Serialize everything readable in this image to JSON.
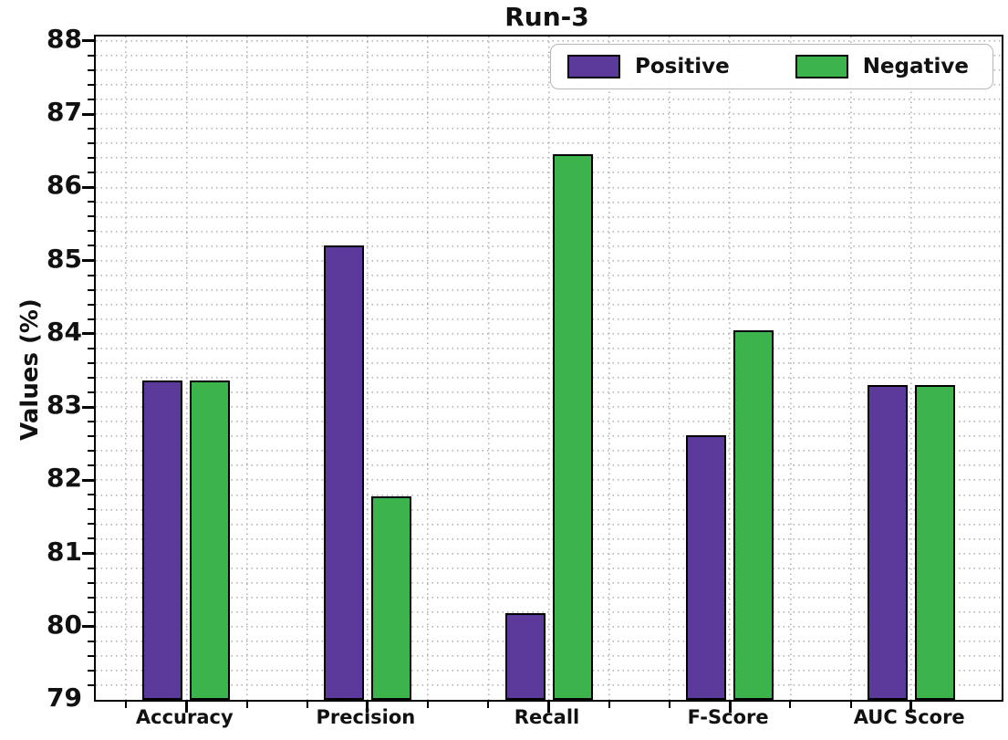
{
  "figure": {
    "background": "#ffffff"
  },
  "chart_data": {
    "type": "bar",
    "title": "Run-3",
    "xlabel": "",
    "ylabel": "Values (%)",
    "categories": [
      "Accuracy",
      "Precision",
      "Recall",
      "F-Score",
      "AUC Score"
    ],
    "series": [
      {
        "name": "Positive",
        "color": "#5b3a9b",
        "edge_color": "#000000",
        "values": [
          83.36,
          85.21,
          80.19,
          82.61,
          83.3
        ]
      },
      {
        "name": "Negative",
        "color": "#3cb44b",
        "edge_color": "#000000",
        "values": [
          83.36,
          81.78,
          86.45,
          84.05,
          83.3
        ]
      }
    ],
    "ylim": [
      79,
      88.06
    ],
    "yticks": [
      79,
      80,
      81,
      82,
      83,
      84,
      85,
      86,
      87,
      88
    ],
    "y_minor_step": 0.2,
    "x_minor_divisions": 3,
    "grid": "dotted",
    "grid_color": "#b3b3b3",
    "legend_position": "upper-right",
    "bar_edge_color": "#000000"
  }
}
